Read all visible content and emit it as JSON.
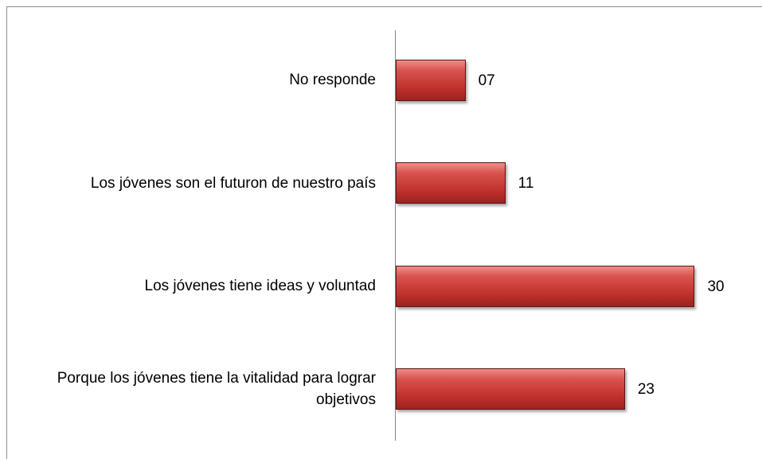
{
  "chart_data": {
    "type": "bar",
    "orientation": "horizontal",
    "categories": [
      "No responde",
      "Los jóvenes son el futuron de nuestro país",
      "Los jóvenes tiene ideas y voluntad",
      "Porque los jóvenes tiene la vitalidad para lograr objetivos"
    ],
    "values": [
      7,
      11,
      30,
      23
    ],
    "value_labels": [
      "07",
      "11",
      "30",
      "23"
    ],
    "color": "#c0504d",
    "xlim": [
      0,
      31
    ]
  }
}
